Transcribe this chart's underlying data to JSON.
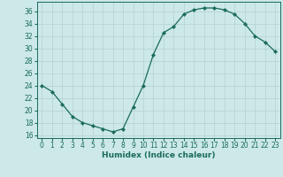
{
  "x": [
    0,
    1,
    2,
    3,
    4,
    5,
    6,
    7,
    8,
    9,
    10,
    11,
    12,
    13,
    14,
    15,
    16,
    17,
    18,
    19,
    20,
    21,
    22,
    23
  ],
  "y": [
    24,
    23,
    21,
    19,
    18,
    17.5,
    17,
    16.5,
    17,
    20.5,
    24,
    29,
    32.5,
    33.5,
    35.5,
    36.2,
    36.5,
    36.5,
    36.2,
    35.5,
    34,
    32,
    31,
    29.5
  ],
  "line_color": "#1a6b5a",
  "marker": "D",
  "marker_size": 2.2,
  "bg_color": "#cce8e8",
  "grid_color": "#b8d4d4",
  "xlabel": "Humidex (Indice chaleur)",
  "xlim": [
    -0.5,
    23.5
  ],
  "ylim": [
    15.5,
    37.5
  ],
  "yticks": [
    16,
    18,
    20,
    22,
    24,
    26,
    28,
    30,
    32,
    34,
    36
  ],
  "xticks": [
    0,
    1,
    2,
    3,
    4,
    5,
    6,
    7,
    8,
    9,
    10,
    11,
    12,
    13,
    14,
    15,
    16,
    17,
    18,
    19,
    20,
    21,
    22,
    23
  ],
  "tick_color": "#1a6b5a",
  "label_fontsize": 6.5,
  "tick_fontsize": 5.5
}
